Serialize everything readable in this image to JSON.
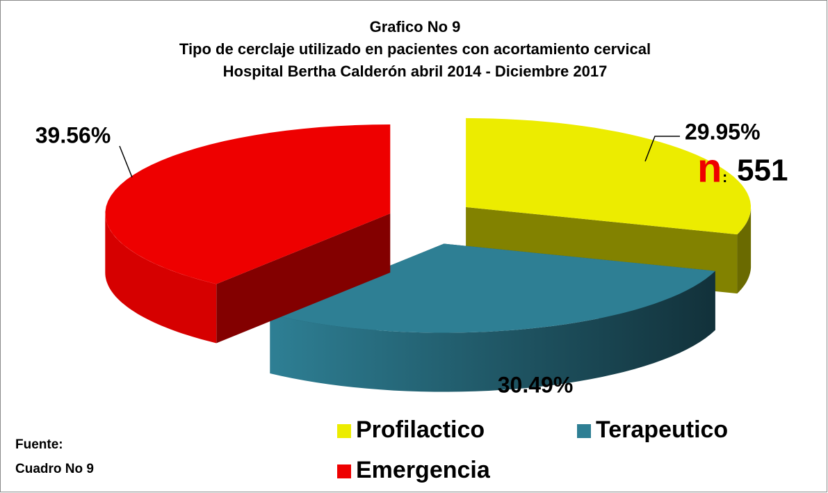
{
  "chart_data": {
    "type": "pie",
    "title": "Grafico No 9",
    "subtitle": [
      "Tipo de cerclaje utilizado en pacientes con acortamiento cervical",
      "Hospital Bertha Calderón abril 2014 - Diciembre 2017"
    ],
    "categories": [
      "Profilactico",
      "Terapeutico",
      "Emergencia"
    ],
    "values": [
      29.95,
      30.49,
      39.56
    ],
    "value_labels": [
      "29.95%",
      "30.49%",
      "39.56%"
    ],
    "colors": [
      "#ecec00",
      "#2e7f94",
      "#ee0000"
    ],
    "legend": "bottom",
    "sample_size": {
      "label": "n",
      "separator": ":",
      "value": 551
    },
    "source": [
      "Fuente:",
      "Cuadro No 9"
    ]
  }
}
